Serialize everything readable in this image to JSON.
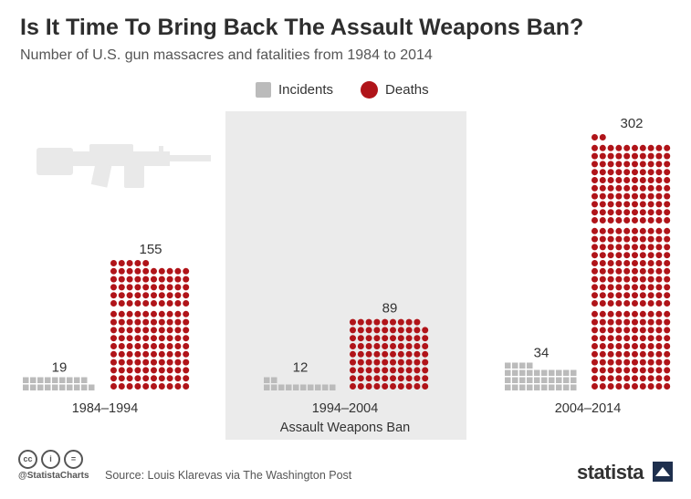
{
  "title": "Is It Time To Bring Back The Assault Weapons Ban?",
  "subtitle": "Number of U.S. gun massacres and fatalities from 1984 to 2014",
  "legend": {
    "incidents": "Incidents",
    "deaths": "Deaths"
  },
  "colors": {
    "incidents": "#bbbbbb",
    "deaths": "#b01419",
    "ban_background": "#ebebeb"
  },
  "chart_data": {
    "type": "bar",
    "categories": [
      "1984–1994",
      "1994–2004",
      "2004–2014"
    ],
    "series": [
      {
        "name": "Incidents",
        "values": [
          19,
          12,
          34
        ]
      },
      {
        "name": "Deaths",
        "values": [
          155,
          89,
          302
        ]
      }
    ],
    "annotation": "Assault Weapons Ban"
  },
  "footer": {
    "cc_icons": [
      "cc-icon",
      "by-icon",
      "nd-icon"
    ],
    "handle": "@StatistaCharts",
    "source": "Source: Louis Klarevas via The Washington Post",
    "brand": "statista"
  }
}
